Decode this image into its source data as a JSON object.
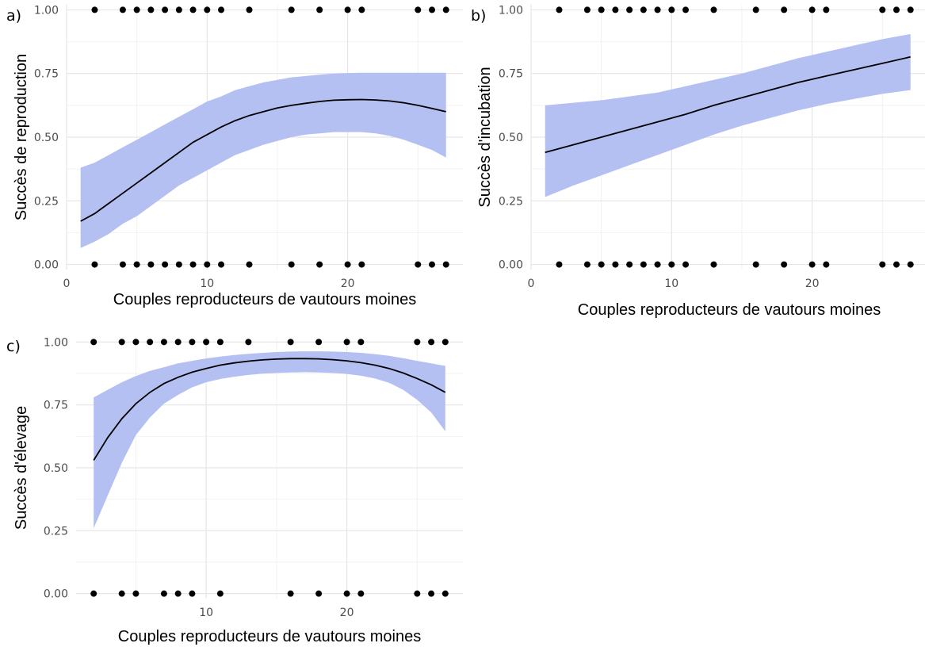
{
  "colors": {
    "band": "#b4c0f1",
    "line": "#000000",
    "point": "#000000",
    "grid": "#e6e6e6"
  },
  "chart_data": [
    {
      "type": "line",
      "panel_label": "a)",
      "xlabel": "Couples reproducteurs de vautours moines",
      "ylabel": "Succès de reproduction",
      "xlim": [
        0,
        28.2
      ],
      "ylim": [
        -0.02,
        1.02
      ],
      "x_ticks": [
        0,
        10,
        20
      ],
      "y_ticks": [
        0.0,
        0.25,
        0.5,
        0.75,
        1.0
      ],
      "fit": {
        "x": [
          1,
          2,
          3,
          4,
          5,
          6,
          7,
          8,
          9,
          10,
          11,
          12,
          13,
          14,
          15,
          16,
          17,
          18,
          19,
          20,
          21,
          22,
          23,
          24,
          25,
          26,
          27
        ],
        "y": [
          0.17,
          0.2,
          0.24,
          0.28,
          0.32,
          0.36,
          0.4,
          0.44,
          0.48,
          0.51,
          0.54,
          0.565,
          0.585,
          0.6,
          0.615,
          0.625,
          0.633,
          0.64,
          0.645,
          0.647,
          0.648,
          0.646,
          0.642,
          0.635,
          0.625,
          0.613,
          0.6
        ],
        "lower": [
          0.065,
          0.09,
          0.12,
          0.16,
          0.19,
          0.23,
          0.27,
          0.31,
          0.34,
          0.37,
          0.4,
          0.43,
          0.45,
          0.47,
          0.485,
          0.5,
          0.51,
          0.515,
          0.52,
          0.52,
          0.52,
          0.515,
          0.505,
          0.49,
          0.47,
          0.45,
          0.42
        ],
        "upper": [
          0.38,
          0.4,
          0.43,
          0.46,
          0.49,
          0.52,
          0.55,
          0.58,
          0.61,
          0.64,
          0.66,
          0.685,
          0.7,
          0.715,
          0.725,
          0.735,
          0.74,
          0.745,
          0.75,
          0.752,
          0.753,
          0.753,
          0.753,
          0.753,
          0.753,
          0.753,
          0.753
        ]
      },
      "points": [
        {
          "x": 2,
          "y": 1
        },
        {
          "x": 4,
          "y": 1
        },
        {
          "x": 5,
          "y": 1
        },
        {
          "x": 6,
          "y": 1
        },
        {
          "x": 7,
          "y": 1
        },
        {
          "x": 8,
          "y": 1
        },
        {
          "x": 9,
          "y": 1
        },
        {
          "x": 10,
          "y": 1
        },
        {
          "x": 11,
          "y": 1
        },
        {
          "x": 13,
          "y": 1
        },
        {
          "x": 16,
          "y": 1
        },
        {
          "x": 18,
          "y": 1
        },
        {
          "x": 20,
          "y": 1
        },
        {
          "x": 21,
          "y": 1
        },
        {
          "x": 25,
          "y": 1
        },
        {
          "x": 26,
          "y": 1
        },
        {
          "x": 27,
          "y": 1
        },
        {
          "x": 2,
          "y": 0
        },
        {
          "x": 4,
          "y": 0
        },
        {
          "x": 5,
          "y": 0
        },
        {
          "x": 6,
          "y": 0
        },
        {
          "x": 7,
          "y": 0
        },
        {
          "x": 8,
          "y": 0
        },
        {
          "x": 9,
          "y": 0
        },
        {
          "x": 10,
          "y": 0
        },
        {
          "x": 11,
          "y": 0
        },
        {
          "x": 13,
          "y": 0
        },
        {
          "x": 16,
          "y": 0
        },
        {
          "x": 18,
          "y": 0
        },
        {
          "x": 20,
          "y": 0
        },
        {
          "x": 21,
          "y": 0
        },
        {
          "x": 25,
          "y": 0
        },
        {
          "x": 26,
          "y": 0
        },
        {
          "x": 27,
          "y": 0
        }
      ]
    },
    {
      "type": "line",
      "panel_label": "b)",
      "xlabel": "Couples reproducteurs de vautours moines",
      "ylabel": "Succès d'incubation",
      "xlim": [
        0,
        28.2
      ],
      "ylim": [
        -0.02,
        1.02
      ],
      "x_ticks": [
        0,
        10,
        20
      ],
      "y_ticks": [
        0.0,
        0.25,
        0.5,
        0.75,
        1.0
      ],
      "fit": {
        "x": [
          1,
          3,
          5,
          7,
          9,
          11,
          13,
          15,
          17,
          19,
          21,
          23,
          25,
          27
        ],
        "y": [
          0.44,
          0.47,
          0.5,
          0.53,
          0.56,
          0.59,
          0.625,
          0.655,
          0.685,
          0.715,
          0.74,
          0.765,
          0.79,
          0.815
        ],
        "lower": [
          0.265,
          0.31,
          0.35,
          0.39,
          0.43,
          0.47,
          0.51,
          0.545,
          0.575,
          0.605,
          0.63,
          0.65,
          0.67,
          0.685
        ],
        "upper": [
          0.625,
          0.635,
          0.645,
          0.66,
          0.675,
          0.7,
          0.725,
          0.75,
          0.78,
          0.81,
          0.835,
          0.86,
          0.885,
          0.905
        ]
      },
      "points": [
        {
          "x": 2,
          "y": 1
        },
        {
          "x": 4,
          "y": 1
        },
        {
          "x": 5,
          "y": 1
        },
        {
          "x": 6,
          "y": 1
        },
        {
          "x": 7,
          "y": 1
        },
        {
          "x": 8,
          "y": 1
        },
        {
          "x": 9,
          "y": 1
        },
        {
          "x": 10,
          "y": 1
        },
        {
          "x": 11,
          "y": 1
        },
        {
          "x": 13,
          "y": 1
        },
        {
          "x": 16,
          "y": 1
        },
        {
          "x": 18,
          "y": 1
        },
        {
          "x": 20,
          "y": 1
        },
        {
          "x": 21,
          "y": 1
        },
        {
          "x": 25,
          "y": 1
        },
        {
          "x": 26,
          "y": 1
        },
        {
          "x": 27,
          "y": 1
        },
        {
          "x": 2,
          "y": 0
        },
        {
          "x": 4,
          "y": 0
        },
        {
          "x": 5,
          "y": 0
        },
        {
          "x": 6,
          "y": 0
        },
        {
          "x": 7,
          "y": 0
        },
        {
          "x": 8,
          "y": 0
        },
        {
          "x": 9,
          "y": 0
        },
        {
          "x": 10,
          "y": 0
        },
        {
          "x": 11,
          "y": 0
        },
        {
          "x": 13,
          "y": 0
        },
        {
          "x": 16,
          "y": 0
        },
        {
          "x": 18,
          "y": 0
        },
        {
          "x": 20,
          "y": 0
        },
        {
          "x": 21,
          "y": 0
        },
        {
          "x": 25,
          "y": 0
        },
        {
          "x": 26,
          "y": 0
        },
        {
          "x": 27,
          "y": 0
        }
      ]
    },
    {
      "type": "line",
      "panel_label": "c)",
      "xlabel": "Couples reproducteurs de vautours moines",
      "ylabel": "Succès d'élevage",
      "xlim": [
        0.75,
        28.25
      ],
      "ylim": [
        -0.02,
        1.02
      ],
      "x_ticks": [
        10,
        20
      ],
      "y_ticks": [
        0.0,
        0.25,
        0.5,
        0.75,
        1.0
      ],
      "fit": {
        "x": [
          2,
          3,
          4,
          5,
          6,
          7,
          8,
          9,
          10,
          11,
          12,
          13,
          14,
          15,
          16,
          17,
          18,
          19,
          20,
          21,
          22,
          23,
          24,
          25,
          26,
          27
        ],
        "y": [
          0.53,
          0.62,
          0.695,
          0.755,
          0.8,
          0.835,
          0.86,
          0.88,
          0.895,
          0.908,
          0.917,
          0.924,
          0.929,
          0.932,
          0.934,
          0.934,
          0.933,
          0.93,
          0.925,
          0.918,
          0.908,
          0.895,
          0.877,
          0.855,
          0.83,
          0.8
        ],
        "lower": [
          0.26,
          0.39,
          0.52,
          0.63,
          0.7,
          0.755,
          0.79,
          0.82,
          0.84,
          0.853,
          0.862,
          0.869,
          0.874,
          0.877,
          0.879,
          0.88,
          0.879,
          0.877,
          0.873,
          0.866,
          0.855,
          0.838,
          0.81,
          0.77,
          0.72,
          0.645
        ],
        "upper": [
          0.78,
          0.81,
          0.84,
          0.865,
          0.885,
          0.9,
          0.915,
          0.925,
          0.935,
          0.942,
          0.948,
          0.953,
          0.957,
          0.96,
          0.962,
          0.963,
          0.963,
          0.962,
          0.96,
          0.957,
          0.952,
          0.945,
          0.936,
          0.925,
          0.915,
          0.905
        ]
      },
      "points": [
        {
          "x": 2,
          "y": 1
        },
        {
          "x": 4,
          "y": 1
        },
        {
          "x": 5,
          "y": 1
        },
        {
          "x": 6,
          "y": 1
        },
        {
          "x": 7,
          "y": 1
        },
        {
          "x": 8,
          "y": 1
        },
        {
          "x": 9,
          "y": 1
        },
        {
          "x": 10,
          "y": 1
        },
        {
          "x": 11,
          "y": 1
        },
        {
          "x": 13,
          "y": 1
        },
        {
          "x": 16,
          "y": 1
        },
        {
          "x": 18,
          "y": 1
        },
        {
          "x": 20,
          "y": 1
        },
        {
          "x": 21,
          "y": 1
        },
        {
          "x": 25,
          "y": 1
        },
        {
          "x": 26,
          "y": 1
        },
        {
          "x": 27,
          "y": 1
        },
        {
          "x": 2,
          "y": 0
        },
        {
          "x": 4,
          "y": 0
        },
        {
          "x": 5,
          "y": 0
        },
        {
          "x": 7,
          "y": 0
        },
        {
          "x": 8,
          "y": 0
        },
        {
          "x": 9,
          "y": 0
        },
        {
          "x": 11,
          "y": 0
        },
        {
          "x": 16,
          "y": 0
        },
        {
          "x": 18,
          "y": 0
        },
        {
          "x": 20,
          "y": 0
        },
        {
          "x": 21,
          "y": 0
        },
        {
          "x": 25,
          "y": 0
        },
        {
          "x": 26,
          "y": 0
        },
        {
          "x": 27,
          "y": 0
        }
      ]
    }
  ]
}
